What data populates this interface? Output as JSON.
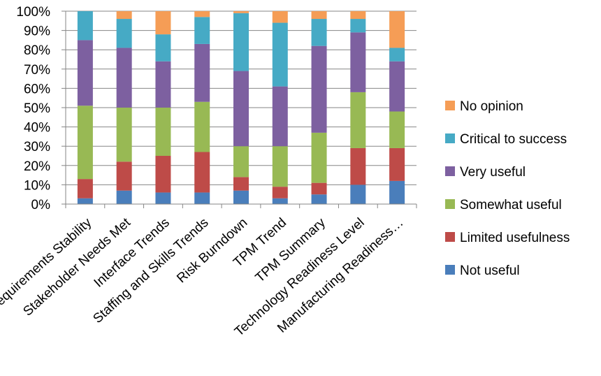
{
  "chart_data": {
    "type": "bar",
    "stacked": true,
    "percent": true,
    "categories": [
      "Requirements Stability",
      "Stakeholder Needs Met",
      "Interface Trends",
      "Staffing and Skills Trends",
      "Risk Burndown",
      "TPM Trend",
      "TPM Summary",
      "Technology Readiness Level",
      "Manufacturing Readiness…"
    ],
    "y_ticks": [
      "0%",
      "10%",
      "20%",
      "30%",
      "40%",
      "50%",
      "60%",
      "70%",
      "80%",
      "90%",
      "100%"
    ],
    "ylim": [
      0,
      100
    ],
    "grid": true,
    "legend_position": "right",
    "series": [
      {
        "name": "Not useful",
        "color": "#4a7ebb",
        "values": [
          3,
          7,
          6,
          6,
          7,
          3,
          5,
          10,
          12
        ]
      },
      {
        "name": "Limited usefulness",
        "color": "#be4b48",
        "values": [
          10,
          15,
          19,
          21,
          7,
          6,
          6,
          19,
          17
        ]
      },
      {
        "name": "Somewhat useful",
        "color": "#98b954",
        "values": [
          38,
          28,
          25,
          26,
          16,
          21,
          26,
          29,
          19
        ]
      },
      {
        "name": "Very useful",
        "color": "#7d60a0",
        "values": [
          34,
          31,
          24,
          30,
          39,
          31,
          45,
          31,
          26
        ]
      },
      {
        "name": "Critical to success",
        "color": "#46aac5",
        "values": [
          15,
          15,
          14,
          14,
          30,
          33,
          14,
          7,
          7
        ]
      },
      {
        "name": "No opinion",
        "color": "#f59d56",
        "values": [
          0,
          4,
          12,
          3,
          1,
          6,
          4,
          4,
          19
        ]
      }
    ]
  }
}
